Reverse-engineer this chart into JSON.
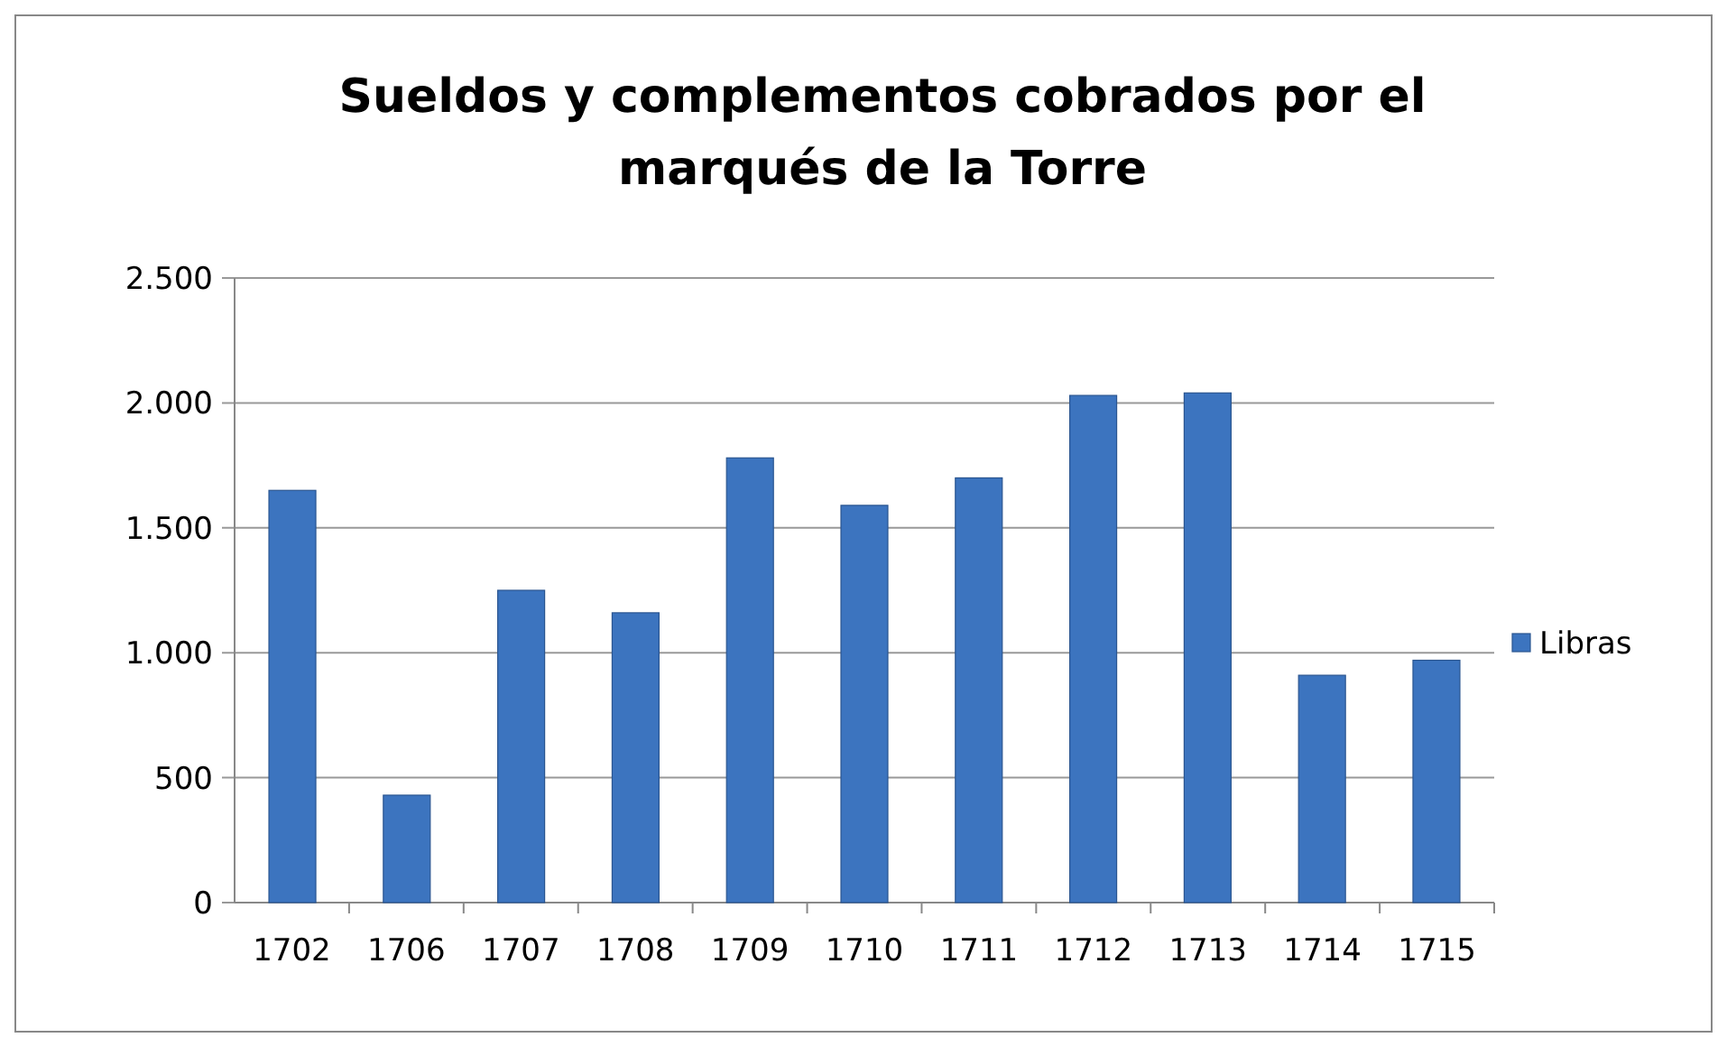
{
  "chart_data": {
    "type": "bar",
    "title": "Sueldos y complementos cobrados por el marqués de la Torre",
    "categories": [
      "1702",
      "1706",
      "1707",
      "1708",
      "1709",
      "1710",
      "1711",
      "1712",
      "1713",
      "1714",
      "1715"
    ],
    "series": [
      {
        "name": "Libras",
        "color": "#3c74bf",
        "values": [
          1650,
          430,
          1250,
          1160,
          1780,
          1590,
          1700,
          2030,
          2040,
          910,
          970
        ]
      }
    ],
    "ylim": [
      0,
      2500
    ],
    "yticks": [
      {
        "value": 0,
        "label": "0"
      },
      {
        "value": 500,
        "label": "500"
      },
      {
        "value": 1000,
        "label": "1.000"
      },
      {
        "value": 1500,
        "label": "1.500"
      },
      {
        "value": 2000,
        "label": "2.000"
      },
      {
        "value": 2500,
        "label": "2.500"
      }
    ],
    "grid": "y",
    "legend": "right"
  }
}
